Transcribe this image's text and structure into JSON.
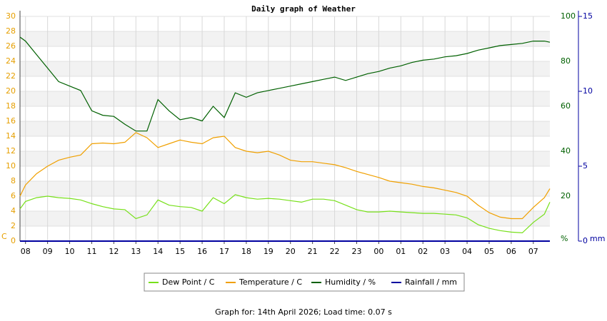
{
  "chart_data": {
    "type": "line",
    "title": "Daily graph of Weather",
    "x": [
      -0.25,
      0,
      0.5,
      1,
      1.5,
      2,
      2.5,
      3,
      3.5,
      4,
      4.5,
      5,
      5.5,
      6,
      6.5,
      7,
      7.5,
      8,
      8.5,
      9,
      9.5,
      10,
      10.5,
      11,
      11.5,
      12,
      12.5,
      13,
      13.5,
      14,
      14.5,
      15,
      15.5,
      16,
      16.5,
      17,
      17.5,
      18,
      18.5,
      19,
      19.5,
      20,
      20.5,
      21,
      21.5,
      22,
      22.5,
      23,
      23.5,
      23.75
    ],
    "xlim": [
      -0.25,
      23.75
    ],
    "xticks": [
      {
        "value": 0,
        "label": "08"
      },
      {
        "value": 1,
        "label": "09"
      },
      {
        "value": 2,
        "label": "10"
      },
      {
        "value": 3,
        "label": "11"
      },
      {
        "value": 4,
        "label": "12"
      },
      {
        "value": 5,
        "label": "13"
      },
      {
        "value": 6,
        "label": "14"
      },
      {
        "value": 7,
        "label": "15"
      },
      {
        "value": 8,
        "label": "16"
      },
      {
        "value": 9,
        "label": "17"
      },
      {
        "value": 10,
        "label": "18"
      },
      {
        "value": 11,
        "label": "19"
      },
      {
        "value": 12,
        "label": "20"
      },
      {
        "value": 13,
        "label": "21"
      },
      {
        "value": 14,
        "label": "22"
      },
      {
        "value": 15,
        "label": "23"
      },
      {
        "value": 16,
        "label": "00"
      },
      {
        "value": 17,
        "label": "01"
      },
      {
        "value": 18,
        "label": "02"
      },
      {
        "value": 19,
        "label": "03"
      },
      {
        "value": 20,
        "label": "04"
      },
      {
        "value": 21,
        "label": "05"
      },
      {
        "value": 22,
        "label": "06"
      },
      {
        "value": 23,
        "label": "07"
      }
    ],
    "ylim": [
      0,
      30
    ],
    "yticks": [
      0,
      2,
      4,
      6,
      8,
      10,
      12,
      14,
      16,
      18,
      20,
      22,
      24,
      26,
      28,
      30
    ],
    "y_unit": "C",
    "y_color": "#e69f00",
    "y2lim": [
      0,
      100
    ],
    "y2ticks": [
      {
        "value": 0,
        "label": "%"
      },
      20,
      40,
      60,
      80,
      100
    ],
    "y2_color": "#006000",
    "y3lim": [
      0,
      15
    ],
    "y3ticks": [
      0,
      5,
      10,
      15
    ],
    "y3_unit": "mm",
    "y3_color": "#0000a0",
    "grid": true,
    "series": [
      {
        "name": "Dew Point / C",
        "color": "#77e01a",
        "axis": "y",
        "values": [
          4.3,
          5.3,
          5.8,
          6,
          5.8,
          5.7,
          5.5,
          5,
          4.6,
          4.3,
          4.2,
          3,
          3.5,
          5.5,
          4.8,
          4.6,
          4.5,
          4,
          5.8,
          5,
          6.2,
          5.8,
          5.6,
          5.7,
          5.6,
          5.4,
          5.2,
          5.6,
          5.6,
          5.4,
          4.8,
          4.2,
          3.9,
          3.9,
          4,
          3.9,
          3.8,
          3.7,
          3.7,
          3.6,
          3.5,
          3.1,
          2.2,
          1.7,
          1.4,
          1.2,
          1.1,
          2.5,
          3.6,
          5.2
        ]
      },
      {
        "name": "Temperature / C",
        "color": "#f0a000",
        "axis": "y",
        "values": [
          6,
          7.5,
          9,
          10,
          10.8,
          11.2,
          11.5,
          13,
          13.1,
          13,
          13.2,
          14.5,
          13.8,
          12.5,
          13,
          13.5,
          13.2,
          13,
          13.8,
          14,
          12.5,
          12,
          11.8,
          12,
          11.5,
          10.8,
          10.6,
          10.6,
          10.4,
          10.2,
          9.8,
          9.3,
          8.9,
          8.5,
          8,
          7.8,
          7.6,
          7.3,
          7.1,
          6.8,
          6.5,
          6,
          4.8,
          3.8,
          3.2,
          3,
          3,
          4.5,
          5.8,
          7
        ]
      },
      {
        "name": "Humidity / %",
        "color": "#006000",
        "axis": "y2",
        "values": [
          90.8,
          89,
          83,
          77,
          71,
          69,
          67,
          58,
          56,
          55.5,
          52,
          49,
          49,
          63,
          58,
          54,
          55,
          53.5,
          60,
          55,
          66,
          64,
          66,
          67,
          68,
          69,
          70,
          71,
          72,
          73,
          71.5,
          73,
          74.5,
          75.5,
          77,
          78,
          79.5,
          80.5,
          81,
          82,
          82.5,
          83.5,
          85,
          86,
          87,
          87.5,
          88,
          89,
          89,
          88.5
        ]
      },
      {
        "name": "Rainfall / mm",
        "color": "#0000a0",
        "axis": "y3",
        "values": [
          0,
          0,
          0,
          0,
          0,
          0,
          0,
          0,
          0,
          0,
          0,
          0,
          0,
          0,
          0,
          0,
          0,
          0,
          0,
          0,
          0,
          0,
          0,
          0,
          0,
          0,
          0,
          0,
          0,
          0,
          0,
          0,
          0,
          0,
          0,
          0,
          0,
          0,
          0,
          0,
          0,
          0,
          0,
          0,
          0,
          0,
          0,
          0,
          0,
          0
        ]
      }
    ]
  },
  "footer": "Graph for: 14th April 2026; Load time: 0.07 s"
}
